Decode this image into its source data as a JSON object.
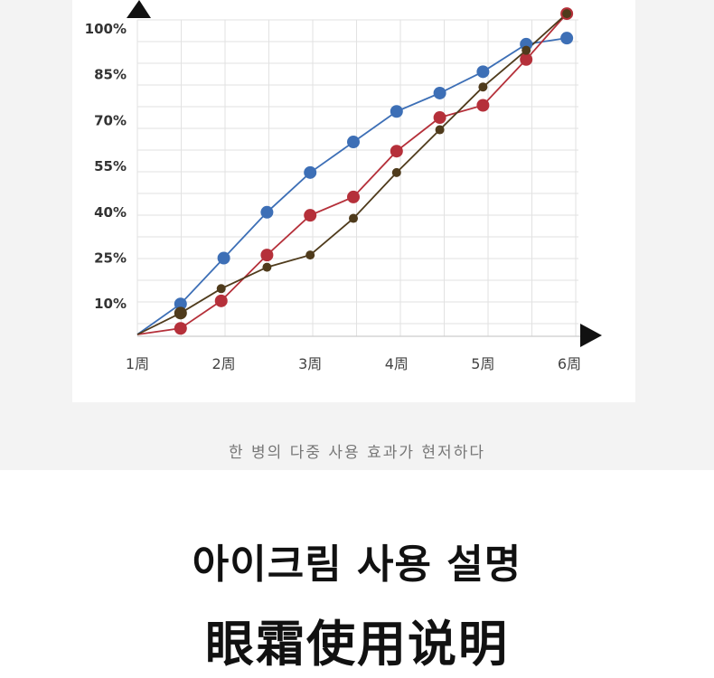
{
  "chart_data": {
    "type": "line",
    "y_ticks": [
      "100%",
      "85%",
      "70%",
      "55%",
      "40%",
      "25%",
      "10%"
    ],
    "x_ticks": [
      "1周",
      "2周",
      "3周",
      "4周",
      "5周",
      "6周"
    ],
    "ylim": [
      -5,
      100
    ],
    "xlim": [
      1,
      6
    ],
    "grid": true,
    "colors": [
      "#3d6fb6",
      "#b5303a",
      "#4f3b1c"
    ],
    "series": [
      {
        "x": [
          1,
          1.5,
          2,
          2.5,
          3,
          3.5,
          4,
          4.5,
          5,
          5.5,
          5.97
        ],
        "values": [
          0,
          10,
          25,
          40,
          53,
          63,
          73,
          79,
          86,
          95,
          97
        ]
      },
      {
        "x": [
          1,
          1.5,
          1.97,
          2.5,
          3,
          3.5,
          4,
          4.5,
          5,
          5.5,
          5.97
        ],
        "values": [
          0,
          2,
          11,
          26,
          39,
          45,
          60,
          71,
          75,
          90,
          105
        ]
      },
      {
        "x": [
          1,
          1.5,
          1.97,
          2.5,
          3,
          3.5,
          4,
          4.5,
          5,
          5.5,
          5.97
        ],
        "values": [
          0,
          7,
          15,
          22,
          26,
          38,
          53,
          67,
          81,
          93,
          105
        ]
      }
    ]
  },
  "caption": "한 병의 다중 사용 효과가 현저하다",
  "title_ko": "아이크림 사용 설명",
  "title_zh": "眼霜使用说明"
}
